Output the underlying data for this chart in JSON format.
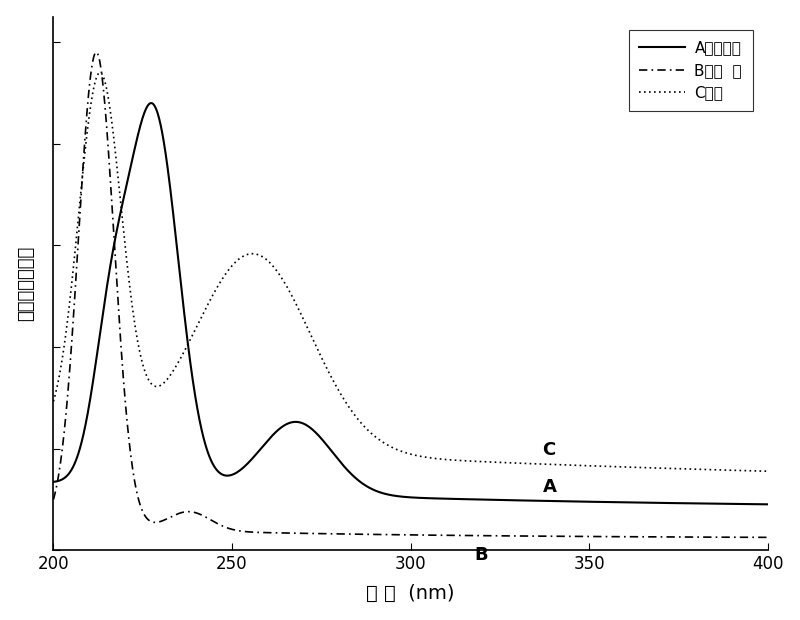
{
  "title": "",
  "xlabel": "波 长  (nm)",
  "ylabel": "吸收（相对值）",
  "xlim": [
    200,
    400
  ],
  "ylim": [
    0,
    1.05
  ],
  "legend_labels": [
    "A原药块体",
    "B纳米  棒",
    "C微粒"
  ],
  "curve_labels": [
    "A",
    "B",
    "C"
  ],
  "background_color": "#ffffff",
  "x_ticks": [
    200,
    250,
    300,
    350,
    400
  ],
  "font_size": 13,
  "legend_fontsize": 11
}
